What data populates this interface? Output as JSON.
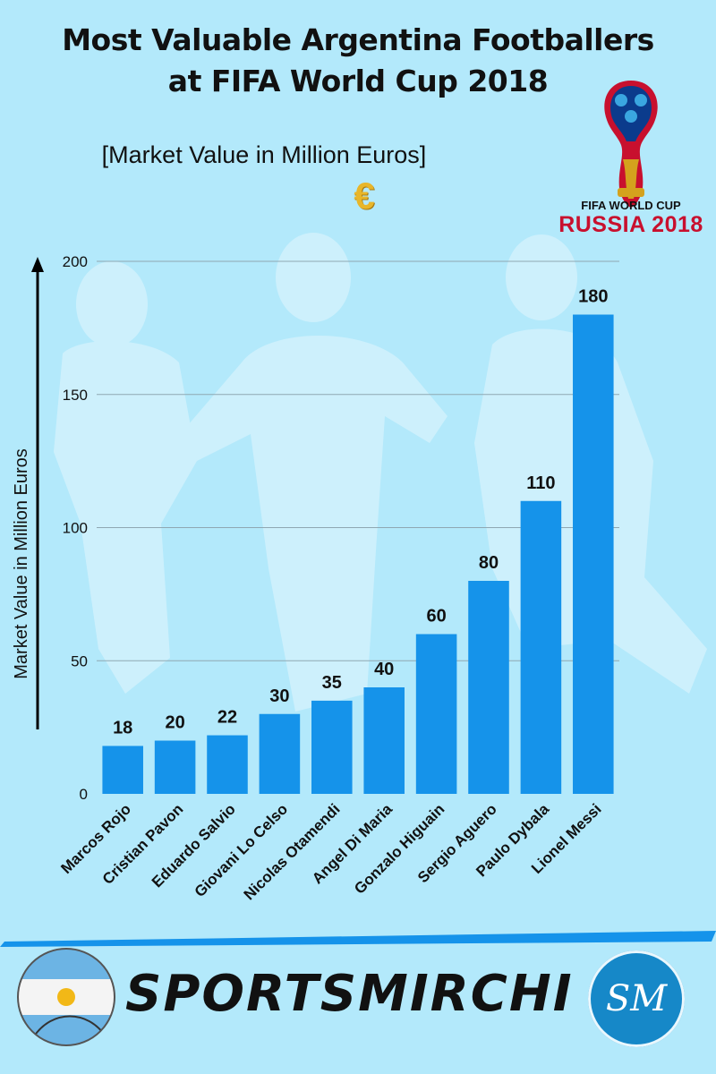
{
  "header": {
    "title_line1": "Most Valuable Argentina Footballers",
    "title_line2": "at FIFA World Cup 2018",
    "subtitle": "[Market Value in Million Euros]",
    "euro_symbol": "€"
  },
  "logo": {
    "line1": "FIFA WORLD CUP",
    "line2": "RUSSIA 2018"
  },
  "chart_data": {
    "type": "bar",
    "title": "Most Valuable Argentina Footballers at FIFA World Cup 2018",
    "subtitle": "[Market Value in Million Euros]",
    "ylabel": "Market Value in Million Euros",
    "xlabel": "",
    "ylim": [
      0,
      200
    ],
    "yticks": [
      0,
      50,
      100,
      150,
      200
    ],
    "grid": true,
    "categories": [
      "Marcos Rojo",
      "Cristian Pavon",
      "Eduardo Salvio",
      "Giovani Lo Celso",
      "Nicolas Otamendi",
      "Angel Di Maria",
      "Gonzalo Higuain",
      "Sergio Aguero",
      "Paulo Dybala",
      "Lionel Messi"
    ],
    "values": [
      18,
      20,
      22,
      30,
      35,
      40,
      60,
      80,
      110,
      180
    ],
    "bar_color": "#1593ea"
  },
  "footer": {
    "brand": "SPORTSMIRCHI",
    "badge": "SM"
  },
  "colors": {
    "background": "#b3e9fb",
    "bar": "#1593ea",
    "logo_red": "#c8102e",
    "euro_gold": "#e8b62a"
  }
}
